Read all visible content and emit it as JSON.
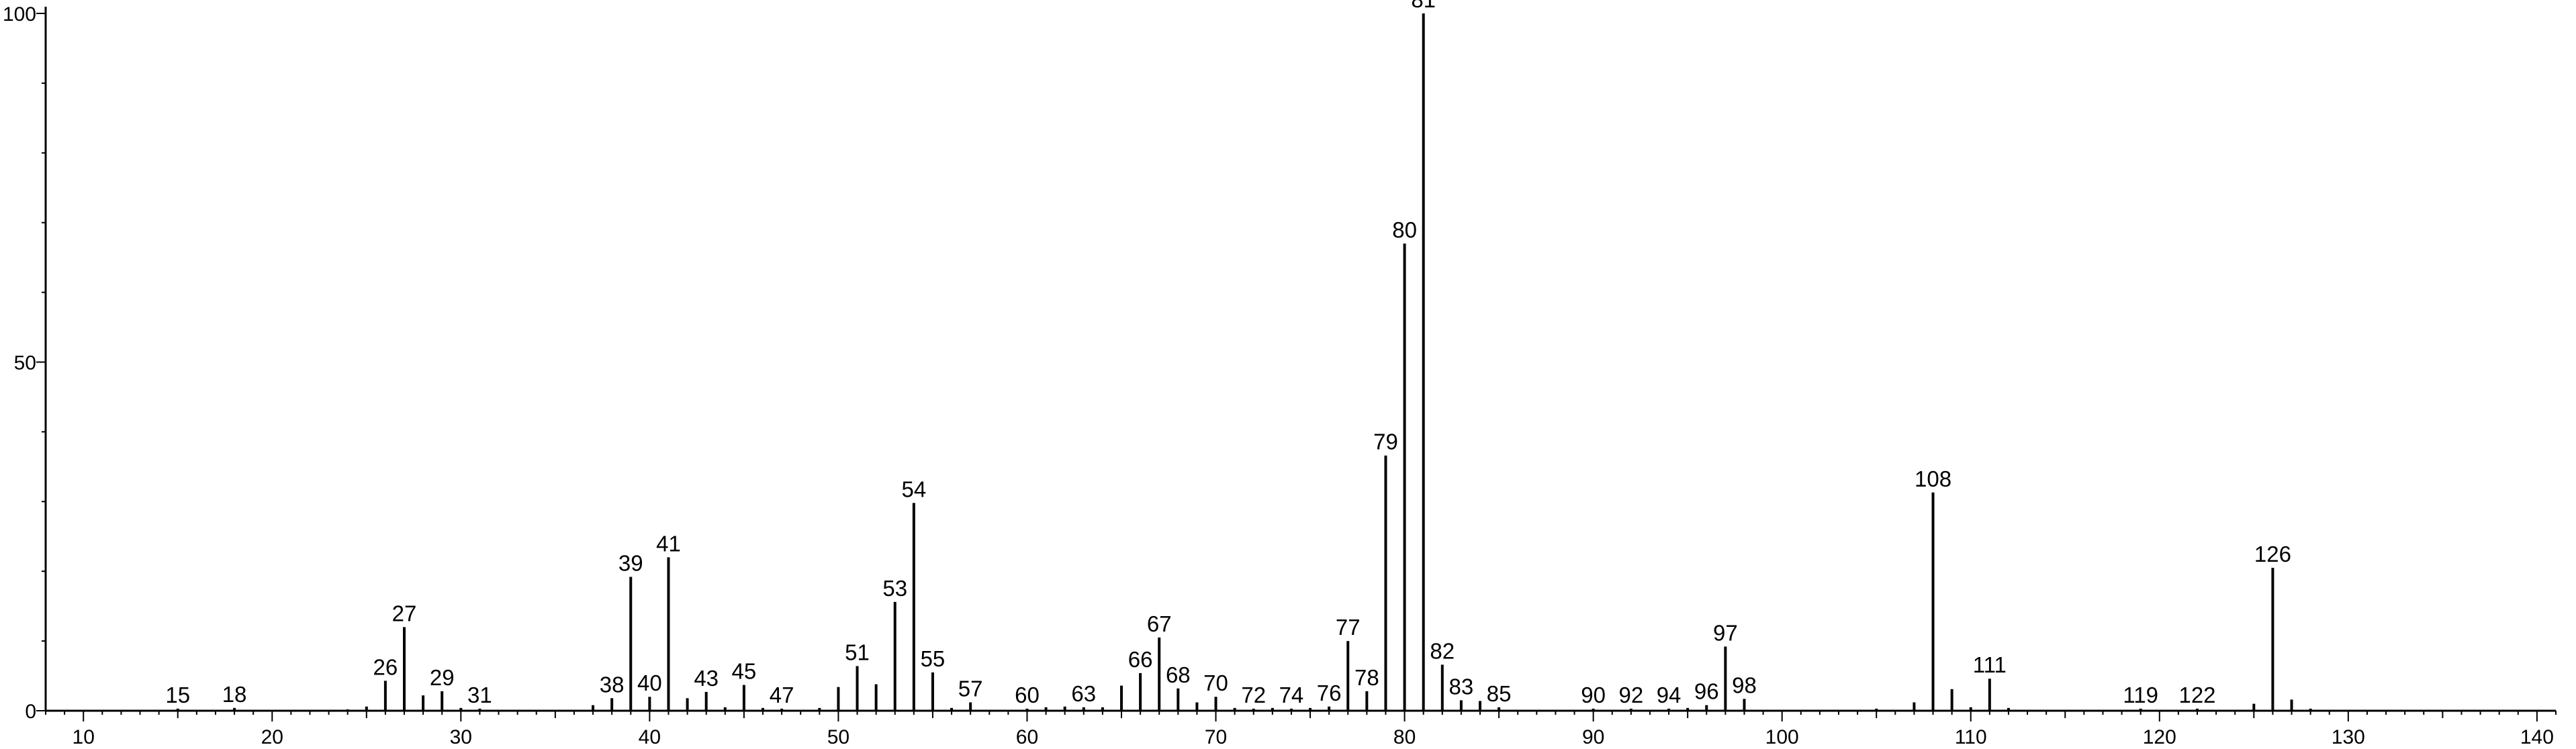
{
  "chart_data": {
    "type": "bar",
    "title": "",
    "xlabel": "",
    "ylabel": "",
    "xlim": [
      8,
      141
    ],
    "ylim": [
      0,
      100
    ],
    "x_ticks": [
      10,
      20,
      30,
      40,
      50,
      60,
      70,
      80,
      90,
      100,
      110,
      120,
      130,
      140
    ],
    "y_ticks": [
      0,
      50,
      100
    ],
    "grid": false,
    "peaks": [
      {
        "mz": 15,
        "intensity": 0.3,
        "label": "15"
      },
      {
        "mz": 18,
        "intensity": 0.4,
        "label": "18"
      },
      {
        "mz": 24,
        "intensity": 0.2
      },
      {
        "mz": 25,
        "intensity": 0.6
      },
      {
        "mz": 26,
        "intensity": 4.3,
        "label": "26"
      },
      {
        "mz": 27,
        "intensity": 12.0,
        "label": "27"
      },
      {
        "mz": 28,
        "intensity": 2.2
      },
      {
        "mz": 29,
        "intensity": 2.8,
        "label": "29"
      },
      {
        "mz": 30,
        "intensity": 0.4
      },
      {
        "mz": 31,
        "intensity": 0.3,
        "label": "31"
      },
      {
        "mz": 37,
        "intensity": 0.8
      },
      {
        "mz": 38,
        "intensity": 1.8,
        "label": "38"
      },
      {
        "mz": 39,
        "intensity": 19.2,
        "label": "39"
      },
      {
        "mz": 40,
        "intensity": 2.0,
        "label": "40"
      },
      {
        "mz": 41,
        "intensity": 22.0,
        "label": "41"
      },
      {
        "mz": 42,
        "intensity": 1.8
      },
      {
        "mz": 43,
        "intensity": 2.7,
        "label": "43"
      },
      {
        "mz": 44,
        "intensity": 0.5
      },
      {
        "mz": 45,
        "intensity": 3.7,
        "label": "45"
      },
      {
        "mz": 46,
        "intensity": 0.4
      },
      {
        "mz": 47,
        "intensity": 0.3,
        "label": "47"
      },
      {
        "mz": 49,
        "intensity": 0.4
      },
      {
        "mz": 50,
        "intensity": 3.4
      },
      {
        "mz": 51,
        "intensity": 6.4,
        "label": "51"
      },
      {
        "mz": 52,
        "intensity": 3.8
      },
      {
        "mz": 53,
        "intensity": 15.6,
        "label": "53"
      },
      {
        "mz": 54,
        "intensity": 29.8,
        "label": "54"
      },
      {
        "mz": 55,
        "intensity": 5.5,
        "label": "55"
      },
      {
        "mz": 56,
        "intensity": 0.4
      },
      {
        "mz": 57,
        "intensity": 1.2,
        "label": "57"
      },
      {
        "mz": 60,
        "intensity": 0.3,
        "label": "60"
      },
      {
        "mz": 61,
        "intensity": 0.5
      },
      {
        "mz": 62,
        "intensity": 0.6
      },
      {
        "mz": 63,
        "intensity": 0.5,
        "label": "63"
      },
      {
        "mz": 64,
        "intensity": 0.5
      },
      {
        "mz": 65,
        "intensity": 3.6
      },
      {
        "mz": 66,
        "intensity": 5.4,
        "label": "66"
      },
      {
        "mz": 67,
        "intensity": 10.5,
        "label": "67"
      },
      {
        "mz": 68,
        "intensity": 3.2,
        "label": "68"
      },
      {
        "mz": 69,
        "intensity": 1.2
      },
      {
        "mz": 70,
        "intensity": 2.0,
        "label": "70"
      },
      {
        "mz": 71,
        "intensity": 0.4
      },
      {
        "mz": 72,
        "intensity": 0.3,
        "label": "72"
      },
      {
        "mz": 73,
        "intensity": 0.4
      },
      {
        "mz": 74,
        "intensity": 0.3,
        "label": "74"
      },
      {
        "mz": 75,
        "intensity": 0.4
      },
      {
        "mz": 76,
        "intensity": 0.6,
        "label": "76"
      },
      {
        "mz": 77,
        "intensity": 10.0,
        "label": "77"
      },
      {
        "mz": 78,
        "intensity": 2.8,
        "label": "78"
      },
      {
        "mz": 79,
        "intensity": 36.6,
        "label": "79"
      },
      {
        "mz": 80,
        "intensity": 67.0,
        "label": "80"
      },
      {
        "mz": 81,
        "intensity": 100.0,
        "label": "81"
      },
      {
        "mz": 82,
        "intensity": 6.6,
        "label": "82"
      },
      {
        "mz": 83,
        "intensity": 1.5,
        "label": "83"
      },
      {
        "mz": 84,
        "intensity": 1.4
      },
      {
        "mz": 85,
        "intensity": 0.5,
        "label": "85"
      },
      {
        "mz": 90,
        "intensity": 0.3,
        "label": "90"
      },
      {
        "mz": 92,
        "intensity": 0.3,
        "label": "92"
      },
      {
        "mz": 94,
        "intensity": 0.3,
        "label": "94"
      },
      {
        "mz": 95,
        "intensity": 0.4
      },
      {
        "mz": 96,
        "intensity": 0.8,
        "label": "96"
      },
      {
        "mz": 97,
        "intensity": 9.2,
        "label": "97"
      },
      {
        "mz": 98,
        "intensity": 1.7,
        "label": "98"
      },
      {
        "mz": 105,
        "intensity": 0.3
      },
      {
        "mz": 107,
        "intensity": 1.2
      },
      {
        "mz": 108,
        "intensity": 31.3,
        "label": "108"
      },
      {
        "mz": 109,
        "intensity": 3.1
      },
      {
        "mz": 110,
        "intensity": 0.5
      },
      {
        "mz": 111,
        "intensity": 4.6,
        "label": "111"
      },
      {
        "mz": 112,
        "intensity": 0.4
      },
      {
        "mz": 119,
        "intensity": 0.3,
        "label": "119"
      },
      {
        "mz": 122,
        "intensity": 0.3,
        "label": "122"
      },
      {
        "mz": 125,
        "intensity": 1.0
      },
      {
        "mz": 126,
        "intensity": 20.5,
        "label": "126"
      },
      {
        "mz": 127,
        "intensity": 1.6
      },
      {
        "mz": 128,
        "intensity": 0.3
      }
    ]
  }
}
